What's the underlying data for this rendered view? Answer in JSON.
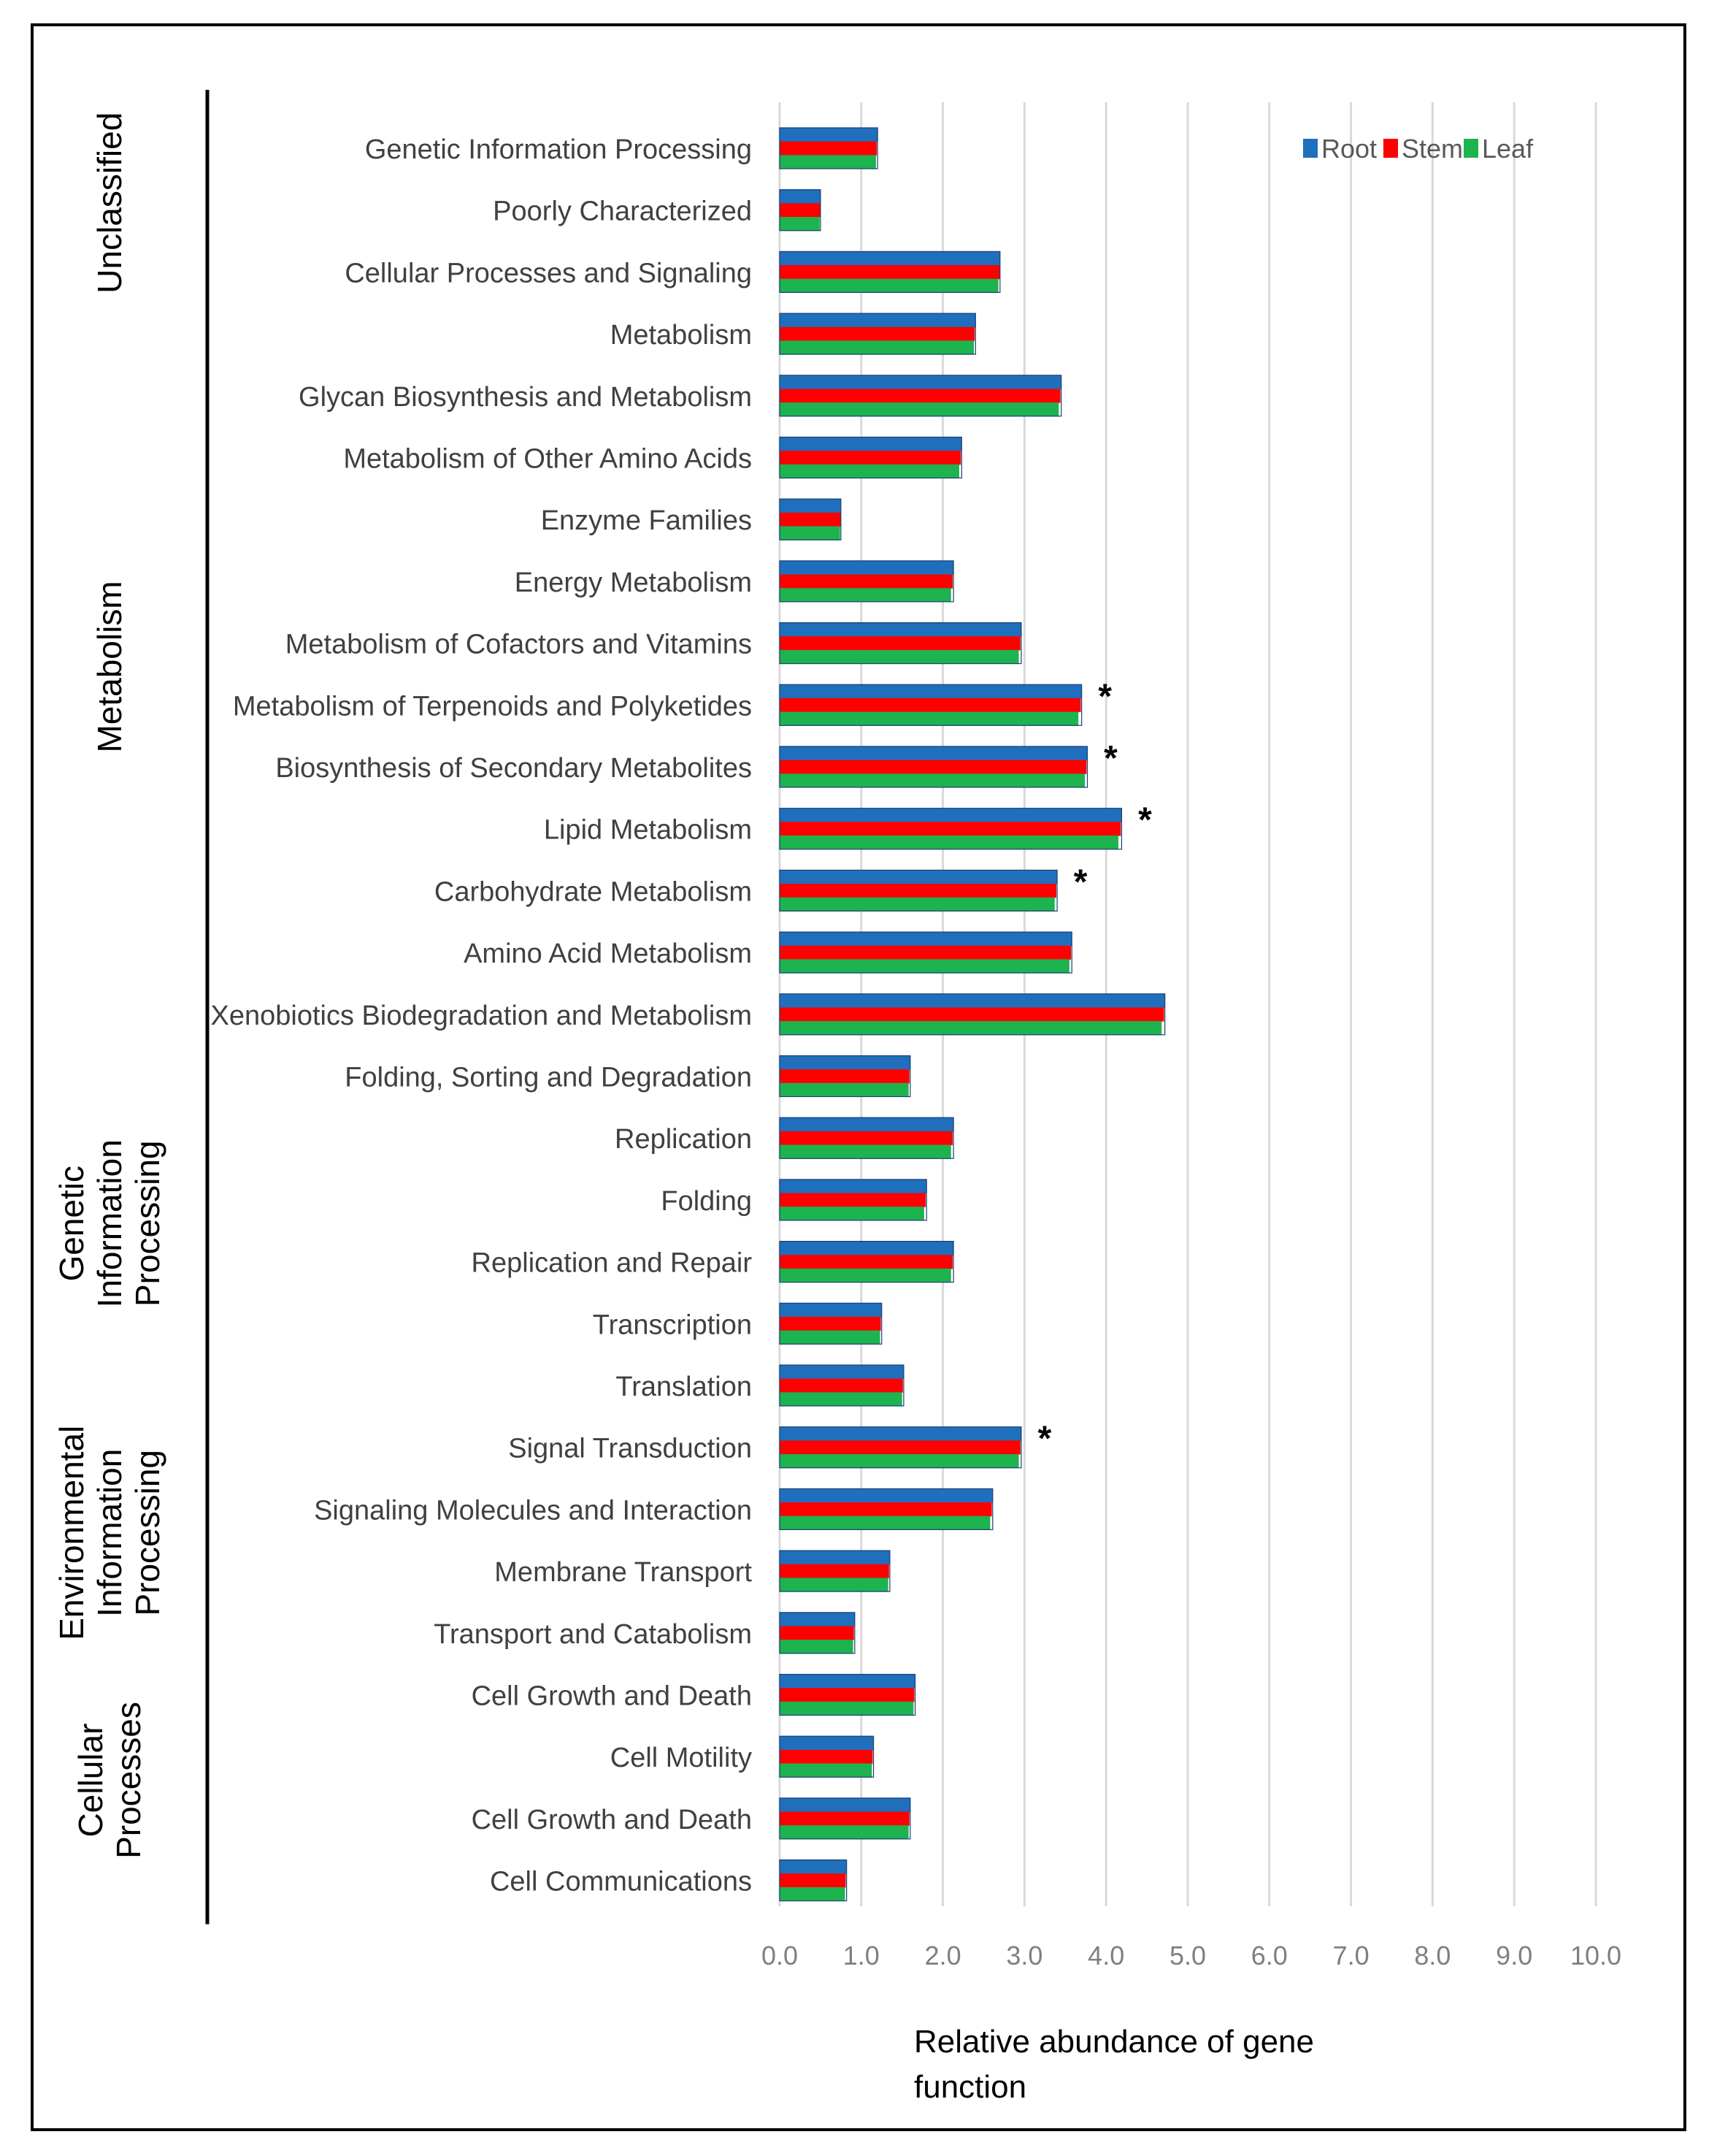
{
  "chart_data": {
    "type": "bar",
    "orientation": "horizontal",
    "xlabel": "Relative abundance of gene function",
    "xlim": [
      0,
      10
    ],
    "xticks": [
      "0.0",
      "1.0",
      "2.0",
      "3.0",
      "4.0",
      "5.0",
      "6.0",
      "7.0",
      "8.0",
      "9.0",
      "10.0"
    ],
    "grid": true,
    "legend_position": "top-right",
    "colors": {
      "Root": "#1f6fbd",
      "Stem": "#ff0000",
      "Leaf": "#1db34f"
    },
    "categories": [
      "Genetic Information Processing",
      "Poorly Characterized",
      "Cellular Processes and Signaling",
      "Metabolism",
      "Glycan Biosynthesis and Metabolism",
      "Metabolism of Other Amino Acids",
      "Enzyme Families",
      "Energy Metabolism",
      "Metabolism of Cofactors and  Vitamins",
      "Metabolism of Terpenoids and Polyketides",
      "Biosynthesis of Secondary Metabolites",
      "Lipid Metabolism",
      "Carbohydrate Metabolism",
      "Amino Acid Metabolism",
      "Xenobiotics Biodegradation and Metabolism",
      "Folding, Sorting and Degradation",
      "Replication",
      "Folding",
      "Replication and Repair",
      "Transcription",
      "Translation",
      "Signal Transduction",
      "Signaling Molecules and Interaction",
      "Membrane Transport",
      "Transport and Catabolism",
      "Cell Growth and Death",
      "Cell Motility",
      "Cell Growth and Death",
      "Cell Communications"
    ],
    "series": [
      {
        "name": "Root",
        "values": [
          1.2,
          0.5,
          2.7,
          2.4,
          3.45,
          2.23,
          0.75,
          2.13,
          2.96,
          3.7,
          3.77,
          4.19,
          3.4,
          3.58,
          4.72,
          1.6,
          2.13,
          1.8,
          2.13,
          1.25,
          1.52,
          2.96,
          2.61,
          1.35,
          0.92,
          1.66,
          1.15,
          1.6,
          0.82
        ]
      },
      {
        "name": "Stem",
        "values": [
          1.19,
          0.5,
          2.7,
          2.39,
          3.44,
          2.22,
          0.75,
          2.12,
          2.95,
          3.69,
          3.76,
          4.18,
          3.39,
          3.57,
          4.71,
          1.59,
          2.12,
          1.79,
          2.12,
          1.24,
          1.51,
          2.95,
          2.6,
          1.34,
          0.91,
          1.65,
          1.14,
          1.59,
          0.81
        ]
      },
      {
        "name": "Leaf",
        "values": [
          1.18,
          0.49,
          2.68,
          2.38,
          3.42,
          2.2,
          0.74,
          2.1,
          2.93,
          3.66,
          3.74,
          4.15,
          3.37,
          3.55,
          4.68,
          1.58,
          2.1,
          1.77,
          2.1,
          1.23,
          1.5,
          2.93,
          2.58,
          1.33,
          0.9,
          1.64,
          1.13,
          1.58,
          0.8
        ]
      }
    ],
    "significant_marker": "*",
    "significant_indices": [
      9,
      10,
      11,
      12,
      21
    ],
    "groups": [
      {
        "lines": [
          "Unclassified"
        ],
        "start": 0,
        "end": 2
      },
      {
        "lines": [
          "Metabolism"
        ],
        "start": 3,
        "end": 14
      },
      {
        "lines": [
          "Genetic",
          "Information",
          "Processing"
        ],
        "start": 15,
        "end": 20
      },
      {
        "lines": [
          "Environmental",
          "Information",
          "Processing"
        ],
        "start": 21,
        "end": 24
      },
      {
        "lines": [
          "Cellular",
          "Processes"
        ],
        "start": 25,
        "end": 28
      }
    ]
  }
}
